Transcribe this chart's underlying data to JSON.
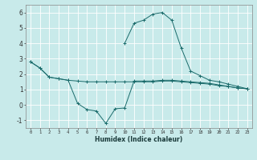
{
  "title": "",
  "xlabel": "Humidex (Indice chaleur)",
  "ylabel": "",
  "bg_color": "#c8eaea",
  "line_color": "#1a6b6b",
  "grid_color": "#ffffff",
  "xlim": [
    -0.5,
    23.5
  ],
  "ylim": [
    -1.5,
    6.5
  ],
  "xticks": [
    0,
    1,
    2,
    3,
    4,
    5,
    6,
    7,
    8,
    9,
    10,
    11,
    12,
    13,
    14,
    15,
    16,
    17,
    18,
    19,
    20,
    21,
    22,
    23
  ],
  "yticks": [
    -1,
    0,
    1,
    2,
    3,
    4,
    5,
    6
  ],
  "series": [
    {
      "x": [
        0,
        1,
        2,
        3,
        4,
        5,
        6,
        7,
        8,
        9,
        10,
        11,
        12,
        13,
        14,
        15,
        16,
        17,
        18,
        19,
        20,
        21,
        22,
        23
      ],
      "y": [
        2.8,
        2.4,
        1.8,
        1.7,
        1.6,
        0.1,
        -0.3,
        -0.4,
        -1.2,
        -0.25,
        -0.2,
        1.55,
        1.55,
        1.55,
        1.6,
        1.6,
        1.55,
        1.5,
        1.45,
        1.4,
        1.3,
        1.2,
        1.1,
        1.05
      ]
    },
    {
      "x": [
        10,
        11,
        12,
        13,
        14,
        15,
        16,
        17,
        18,
        19,
        20,
        21,
        22,
        23
      ],
      "y": [
        4.0,
        5.3,
        5.5,
        5.9,
        6.0,
        5.5,
        3.7,
        2.2,
        1.9,
        1.6,
        1.5,
        1.35,
        1.2,
        1.05
      ]
    },
    {
      "x": [
        0,
        1,
        2,
        3,
        4,
        5,
        6,
        7,
        8,
        9,
        10,
        11,
        12,
        13,
        14,
        15,
        16,
        17,
        18,
        19,
        20,
        21,
        22,
        23
      ],
      "y": [
        2.8,
        2.4,
        1.8,
        1.7,
        1.6,
        1.55,
        1.5,
        1.5,
        1.5,
        1.5,
        1.5,
        1.5,
        1.5,
        1.5,
        1.55,
        1.55,
        1.5,
        1.45,
        1.4,
        1.35,
        1.25,
        1.2,
        1.1,
        1.05
      ]
    }
  ]
}
